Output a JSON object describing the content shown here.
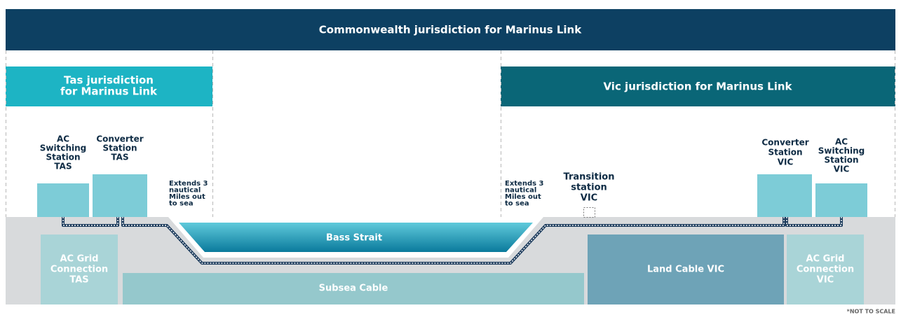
{
  "banner": "Commonwealth jurisdiction for Marinus Link",
  "tas_jurisdiction": [
    "Tas jurisdiction",
    "for Marinus Link"
  ],
  "vic_jurisdiction": "Vic jurisdiction for Marinus Link",
  "stations": {
    "ac_switching_tas": [
      "AC",
      "Switching",
      "Station",
      "TAS"
    ],
    "converter_tas": [
      "Converter",
      "Station",
      "TAS"
    ],
    "transition_vic": [
      "Transition",
      "station",
      "VIC"
    ],
    "converter_vic": [
      "Converter",
      "Station",
      "VIC"
    ],
    "ac_switching_vic": [
      "AC",
      "Switching",
      "Station",
      "VIC"
    ]
  },
  "extends_tas": [
    "Extends 3",
    "nautical",
    "Miles out",
    "to sea"
  ],
  "extends_vic": [
    "Extends 3",
    "nautical",
    "Miles out",
    "to sea"
  ],
  "bass_strait": "Bass Strait",
  "cables": {
    "ac_grid_tas": [
      "AC Grid",
      "Connection",
      "TAS"
    ],
    "subsea": "Subsea Cable",
    "land_vic": "Land Cable VIC",
    "ac_grid_vic": [
      "AC Grid",
      "Connection",
      "VIC"
    ]
  },
  "note": "*NOT TO SCALE"
}
